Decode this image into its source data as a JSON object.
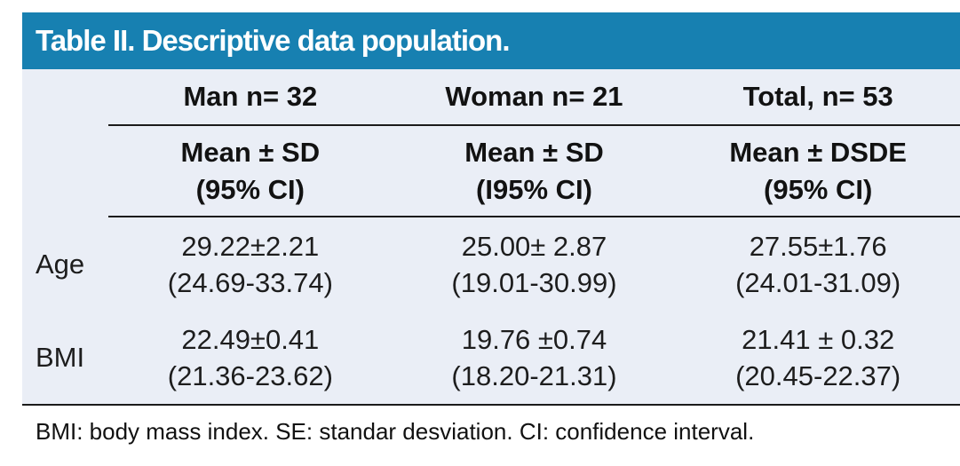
{
  "title": "Table II. Descriptive data population.",
  "colors": {
    "header_bg": "#1780b1",
    "body_bg": "#eaeef6",
    "rule": "#1b1b1b",
    "title_color": "#ffffff"
  },
  "table": {
    "columns": [
      {
        "header": "Man n= 32",
        "subheader_line1": "Mean ± SD",
        "subheader_line2": "(95% CI)"
      },
      {
        "header": "Woman n= 21",
        "subheader_line1": "Mean ± SD",
        "subheader_line2": "(I95% CI)"
      },
      {
        "header": "Total, n= 53",
        "subheader_line1": "Mean ± DSDE",
        "subheader_line2": "(95% CI)"
      }
    ],
    "rows": [
      {
        "label": "Age",
        "cells": [
          {
            "mean": "29.22±2.21",
            "ci": "(24.69-33.74)"
          },
          {
            "mean": "25.00± 2.87",
            "ci": "(19.01-30.99)"
          },
          {
            "mean": "27.55±1.76",
            "ci": "(24.01-31.09)"
          }
        ]
      },
      {
        "label": "BMI",
        "cells": [
          {
            "mean": "22.49±0.41",
            "ci": "(21.36-23.62)"
          },
          {
            "mean": "19.76 ±0.74",
            "ci": "(18.20-21.31)"
          },
          {
            "mean": "21.41 ± 0.32",
            "ci": "(20.45-22.37)"
          }
        ]
      }
    ]
  },
  "footnote": "BMI: body mass index. SE: standar desviation. CI: confidence interval."
}
